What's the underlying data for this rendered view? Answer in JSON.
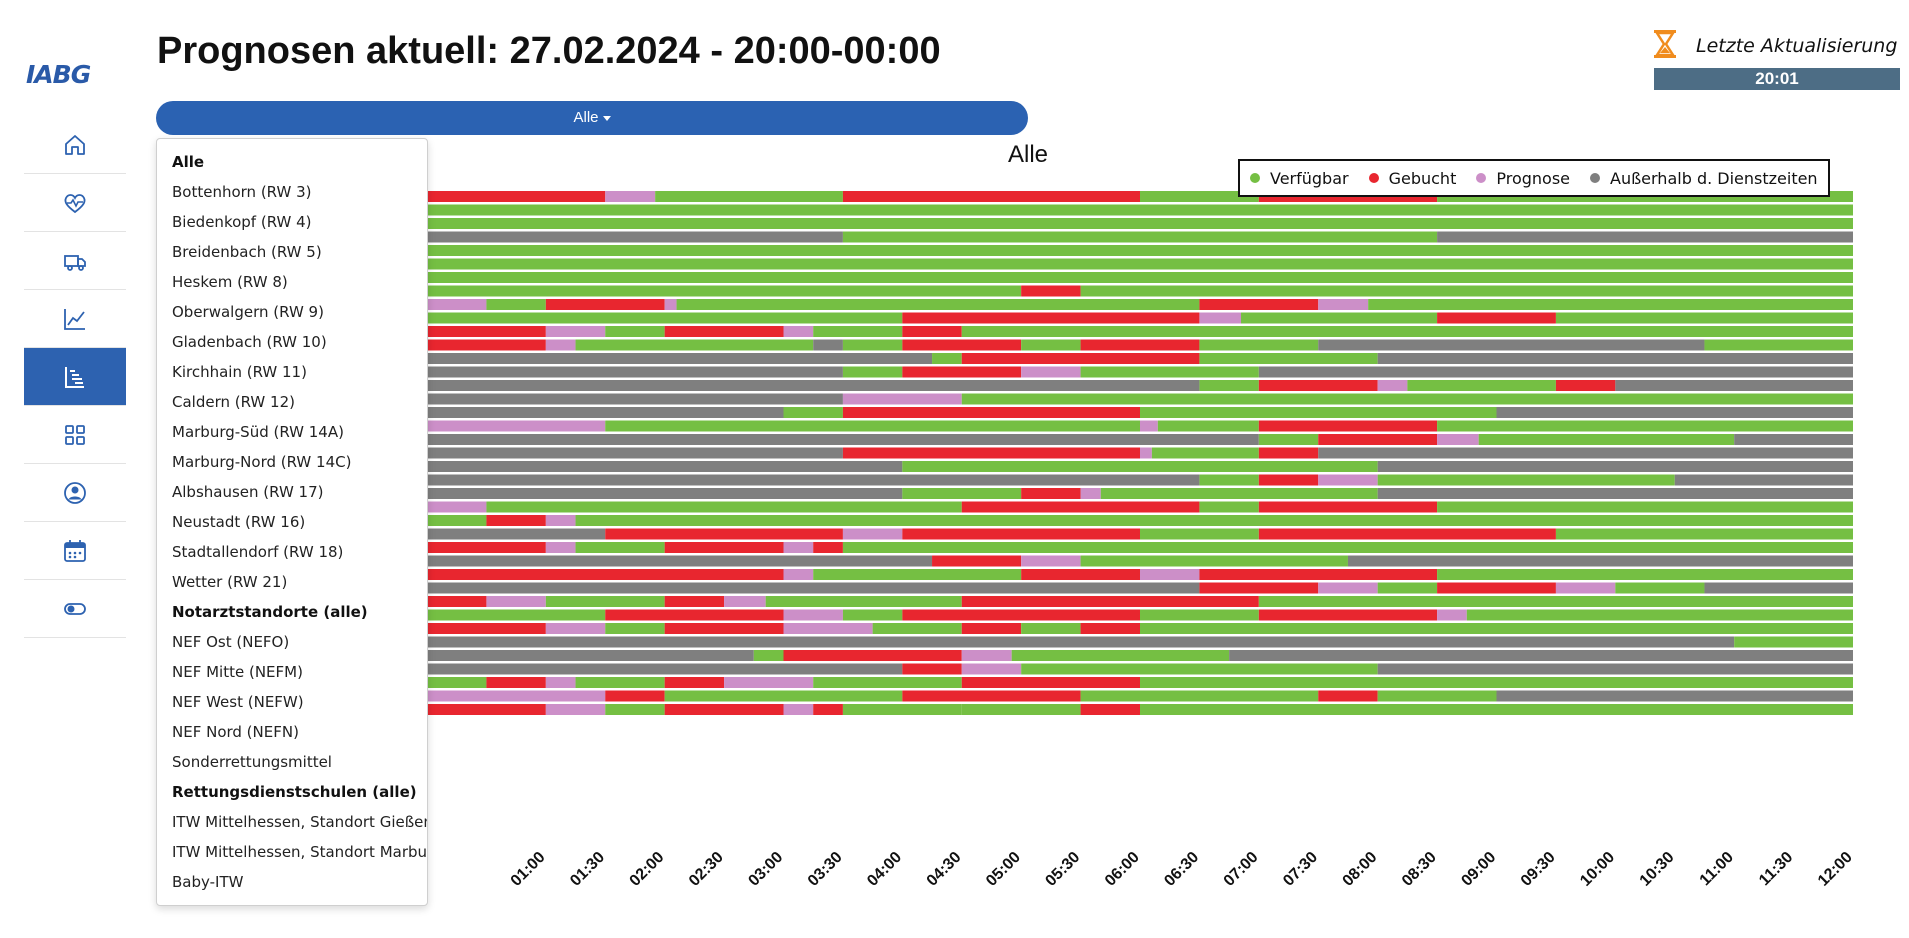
{
  "logo": {
    "text": "IABG"
  },
  "sidebar": {
    "items": [
      {
        "name": "home",
        "icon": "home-icon",
        "active": false
      },
      {
        "name": "health",
        "icon": "heart-pulse-icon",
        "active": false
      },
      {
        "name": "vehicles",
        "icon": "truck-icon",
        "active": false
      },
      {
        "name": "statistics",
        "icon": "line-chart-icon",
        "active": false
      },
      {
        "name": "forecast",
        "icon": "gantt-chart-icon",
        "active": true
      },
      {
        "name": "dashboard",
        "icon": "grid-icon",
        "active": false
      },
      {
        "name": "profile",
        "icon": "user-circle-icon",
        "active": false
      },
      {
        "name": "calendar",
        "icon": "calendar-icon",
        "active": false
      },
      {
        "name": "settings",
        "icon": "toggle-icon",
        "active": false
      }
    ]
  },
  "header": {
    "title": "Prognosen aktuell: 27.02.2024 - 20:00-00:00",
    "update_label": "Letzte Aktualisierung",
    "update_time": "20:01"
  },
  "filter": {
    "selected": "Alle",
    "options": [
      {
        "label": "Alle",
        "bold": true
      },
      {
        "label": "Bottenhorn (RW 3)",
        "bold": false
      },
      {
        "label": "Biedenkopf (RW 4)",
        "bold": false
      },
      {
        "label": "Breidenbach (RW 5)",
        "bold": false
      },
      {
        "label": "Heskem (RW 8)",
        "bold": false
      },
      {
        "label": "Oberwalgern (RW 9)",
        "bold": false
      },
      {
        "label": "Gladenbach (RW 10)",
        "bold": false
      },
      {
        "label": "Kirchhain (RW 11)",
        "bold": false
      },
      {
        "label": "Caldern (RW 12)",
        "bold": false
      },
      {
        "label": "Marburg-Süd (RW 14A)",
        "bold": false
      },
      {
        "label": "Marburg-Nord (RW 14C)",
        "bold": false
      },
      {
        "label": "Albshausen (RW 17)",
        "bold": false
      },
      {
        "label": "Neustadt (RW 16)",
        "bold": false
      },
      {
        "label": "Stadtallendorf (RW 18)",
        "bold": false
      },
      {
        "label": "Wetter (RW 21)",
        "bold": false
      },
      {
        "label": "Notarztstandorte (alle)",
        "bold": true
      },
      {
        "label": "NEF Ost (NEFO)",
        "bold": false
      },
      {
        "label": "NEF Mitte (NEFM)",
        "bold": false
      },
      {
        "label": "NEF West (NEFW)",
        "bold": false
      },
      {
        "label": "NEF Nord (NEFN)",
        "bold": false
      },
      {
        "label": "Sonderrettungsmittel",
        "bold": false
      },
      {
        "label": "Rettungsdienstschulen (alle)",
        "bold": true
      },
      {
        "label": "ITW Mittelhessen, Standort Gießen",
        "bold": false
      },
      {
        "label": "ITW Mittelhessen, Standort Marburg",
        "bold": false
      },
      {
        "label": "Baby-ITW",
        "bold": false
      }
    ]
  },
  "colors": {
    "verfuegbar": "#75bf43",
    "gebucht": "#e8262f",
    "prognose": "#cc8fc8",
    "ausserhalb": "#7f7f7f",
    "accent": "#2b62b2"
  },
  "chart_data": {
    "type": "timeline",
    "title": "Alle",
    "legend": [
      {
        "key": "V",
        "label": "Verfügbar"
      },
      {
        "key": "G",
        "label": "Gebucht"
      },
      {
        "key": "P",
        "label": "Prognose"
      },
      {
        "key": "A",
        "label": "Außerhalb d. Dienstzeiten"
      }
    ],
    "legend_position": "top-right",
    "x_unit": "hours since 00:00",
    "xlim": [
      0,
      12
    ],
    "x_ticks": [
      "01:00",
      "01:30",
      "02:00",
      "02:30",
      "03:00",
      "03:30",
      "04:00",
      "04:30",
      "05:00",
      "05:30",
      "06:00",
      "06:30",
      "07:00",
      "07:30",
      "08:00",
      "08:30",
      "09:00",
      "09:30",
      "10:00",
      "10:30",
      "11:00",
      "11:30",
      "12:00"
    ],
    "rows": [
      [
        [
          0,
          1.5,
          "G"
        ],
        [
          1.5,
          1.92,
          "P"
        ],
        [
          1.92,
          3.5,
          "V"
        ],
        [
          3.5,
          6.0,
          "G"
        ],
        [
          6.0,
          7.0,
          "V"
        ],
        [
          7.0,
          8.5,
          "G"
        ],
        [
          8.5,
          12,
          "V"
        ]
      ],
      [
        [
          0,
          12,
          "V"
        ]
      ],
      [
        [
          0,
          12,
          "V"
        ]
      ],
      [
        [
          0,
          3.5,
          "A"
        ],
        [
          3.5,
          8.5,
          "V"
        ],
        [
          8.5,
          12,
          "A"
        ]
      ],
      [
        [
          0,
          12,
          "V"
        ]
      ],
      [
        [
          0,
          12,
          "V"
        ]
      ],
      [
        [
          0,
          12,
          "V"
        ]
      ],
      [
        [
          0,
          5.0,
          "V"
        ],
        [
          5.0,
          5.5,
          "G"
        ],
        [
          5.5,
          12,
          "V"
        ]
      ],
      [
        [
          0,
          0.5,
          "P"
        ],
        [
          0.5,
          1.0,
          "V"
        ],
        [
          1.0,
          2.0,
          "G"
        ],
        [
          2.0,
          2.1,
          "P"
        ],
        [
          2.1,
          6.5,
          "V"
        ],
        [
          6.5,
          7.5,
          "G"
        ],
        [
          7.5,
          7.92,
          "P"
        ],
        [
          7.92,
          12,
          "V"
        ]
      ],
      [
        [
          0,
          4.0,
          "V"
        ],
        [
          4.0,
          6.5,
          "G"
        ],
        [
          6.5,
          6.85,
          "P"
        ],
        [
          6.85,
          8.5,
          "V"
        ],
        [
          8.5,
          9.5,
          "G"
        ],
        [
          9.5,
          12,
          "V"
        ]
      ],
      [
        [
          0,
          1.0,
          "G"
        ],
        [
          1.0,
          1.5,
          "P"
        ],
        [
          1.5,
          2.0,
          "V"
        ],
        [
          2.0,
          3.0,
          "G"
        ],
        [
          3.0,
          3.25,
          "P"
        ],
        [
          3.25,
          4.0,
          "V"
        ],
        [
          4.0,
          4.5,
          "G"
        ],
        [
          4.5,
          12,
          "V"
        ]
      ],
      [
        [
          0,
          1.0,
          "G"
        ],
        [
          1.0,
          1.25,
          "P"
        ],
        [
          1.25,
          3.25,
          "V"
        ],
        [
          3.25,
          3.5,
          "A"
        ],
        [
          3.5,
          4.0,
          "V"
        ],
        [
          4.0,
          5.0,
          "G"
        ],
        [
          5.0,
          5.5,
          "V"
        ],
        [
          5.5,
          6.5,
          "G"
        ],
        [
          6.5,
          7.5,
          "V"
        ],
        [
          7.5,
          10.75,
          "A"
        ],
        [
          10.75,
          12,
          "V"
        ]
      ],
      [
        [
          0,
          4.25,
          "A"
        ],
        [
          4.25,
          4.5,
          "V"
        ],
        [
          4.5,
          6.5,
          "G"
        ],
        [
          6.5,
          8.0,
          "V"
        ],
        [
          8.0,
          12,
          "A"
        ]
      ],
      [
        [
          0,
          3.5,
          "A"
        ],
        [
          3.5,
          4.0,
          "V"
        ],
        [
          4.0,
          5.0,
          "G"
        ],
        [
          5.0,
          5.5,
          "P"
        ],
        [
          5.5,
          7.0,
          "V"
        ],
        [
          7.0,
          12,
          "A"
        ]
      ],
      [
        [
          0,
          6.5,
          "A"
        ],
        [
          6.5,
          7.0,
          "V"
        ],
        [
          7.0,
          8.0,
          "G"
        ],
        [
          8.0,
          8.25,
          "P"
        ],
        [
          8.25,
          9.5,
          "V"
        ],
        [
          9.5,
          10.0,
          "G"
        ],
        [
          10.0,
          12,
          "A"
        ]
      ],
      [
        [
          0,
          3.5,
          "A"
        ],
        [
          3.5,
          4.5,
          "P"
        ],
        [
          4.5,
          12,
          "V"
        ]
      ],
      [
        [
          0,
          3.0,
          "A"
        ],
        [
          3.0,
          3.5,
          "V"
        ],
        [
          3.5,
          6.0,
          "G"
        ],
        [
          6.0,
          9.0,
          "V"
        ],
        [
          9.0,
          12,
          "A"
        ]
      ],
      [
        [
          0,
          1.5,
          "P"
        ],
        [
          1.5,
          6.0,
          "V"
        ],
        [
          6.0,
          6.15,
          "P"
        ],
        [
          6.15,
          7.0,
          "V"
        ],
        [
          7.0,
          8.5,
          "G"
        ],
        [
          8.5,
          12,
          "V"
        ]
      ],
      [
        [
          0,
          7.0,
          "A"
        ],
        [
          7.0,
          7.5,
          "V"
        ],
        [
          7.5,
          8.5,
          "G"
        ],
        [
          8.5,
          8.85,
          "P"
        ],
        [
          8.85,
          11.0,
          "V"
        ],
        [
          11.0,
          12,
          "A"
        ]
      ],
      [
        [
          0,
          3.5,
          "A"
        ],
        [
          3.5,
          6.0,
          "G"
        ],
        [
          6.0,
          6.1,
          "P"
        ],
        [
          6.1,
          7.0,
          "V"
        ],
        [
          7.0,
          7.5,
          "G"
        ],
        [
          7.5,
          12,
          "A"
        ]
      ],
      [
        [
          0,
          4.0,
          "A"
        ],
        [
          4.0,
          8.0,
          "V"
        ],
        [
          8.0,
          12,
          "A"
        ]
      ],
      [
        [
          0,
          6.5,
          "A"
        ],
        [
          6.5,
          7.0,
          "V"
        ],
        [
          7.0,
          7.5,
          "G"
        ],
        [
          7.5,
          8.0,
          "P"
        ],
        [
          8.0,
          10.5,
          "V"
        ],
        [
          10.5,
          12,
          "A"
        ]
      ],
      [
        [
          0,
          4.0,
          "A"
        ],
        [
          4.0,
          5.0,
          "V"
        ],
        [
          5.0,
          5.5,
          "G"
        ],
        [
          5.5,
          5.67,
          "P"
        ],
        [
          5.67,
          8.0,
          "V"
        ],
        [
          8.0,
          12,
          "A"
        ]
      ],
      [
        [
          0,
          0.5,
          "P"
        ],
        [
          0.5,
          4.5,
          "V"
        ],
        [
          4.5,
          6.5,
          "G"
        ],
        [
          6.5,
          7.0,
          "V"
        ],
        [
          7.0,
          8.5,
          "G"
        ],
        [
          8.5,
          12,
          "V"
        ]
      ],
      [
        [
          0,
          0.5,
          "V"
        ],
        [
          0.5,
          1.0,
          "G"
        ],
        [
          1.0,
          1.25,
          "P"
        ],
        [
          1.25,
          12,
          "V"
        ]
      ],
      [
        [
          0,
          1.5,
          "A"
        ],
        [
          1.5,
          3.5,
          "G"
        ],
        [
          3.5,
          4.0,
          "P"
        ],
        [
          4.0,
          6.0,
          "G"
        ],
        [
          6.0,
          7.0,
          "V"
        ],
        [
          7.0,
          9.5,
          "G"
        ],
        [
          9.5,
          12,
          "V"
        ]
      ],
      [
        [
          0,
          1.0,
          "G"
        ],
        [
          1.0,
          1.25,
          "P"
        ],
        [
          1.25,
          2.0,
          "V"
        ],
        [
          2.0,
          3.0,
          "G"
        ],
        [
          3.0,
          3.25,
          "P"
        ],
        [
          3.25,
          3.5,
          "G"
        ],
        [
          3.5,
          12,
          "V"
        ]
      ],
      [
        [
          0,
          4.25,
          "A"
        ],
        [
          4.25,
          5.0,
          "G"
        ],
        [
          5.0,
          5.5,
          "P"
        ],
        [
          5.5,
          7.75,
          "V"
        ],
        [
          7.75,
          12,
          "A"
        ]
      ],
      [
        [
          0,
          3.0,
          "G"
        ],
        [
          3.0,
          3.25,
          "P"
        ],
        [
          3.25,
          5.0,
          "V"
        ],
        [
          5.0,
          6.0,
          "G"
        ],
        [
          6.0,
          6.5,
          "P"
        ],
        [
          6.5,
          8.5,
          "G"
        ],
        [
          8.5,
          12,
          "V"
        ]
      ],
      [
        [
          0,
          6.5,
          "A"
        ],
        [
          6.5,
          7.5,
          "G"
        ],
        [
          7.5,
          8.0,
          "P"
        ],
        [
          8.0,
          8.5,
          "V"
        ],
        [
          8.5,
          9.5,
          "G"
        ],
        [
          9.5,
          10.0,
          "P"
        ],
        [
          10.0,
          10.75,
          "V"
        ],
        [
          10.75,
          12,
          "A"
        ]
      ],
      [
        [
          0,
          0.5,
          "G"
        ],
        [
          0.5,
          1.0,
          "P"
        ],
        [
          1.0,
          2.0,
          "V"
        ],
        [
          2.0,
          2.5,
          "G"
        ],
        [
          2.5,
          2.85,
          "P"
        ],
        [
          2.85,
          4.5,
          "V"
        ],
        [
          4.5,
          7.0,
          "G"
        ],
        [
          7.0,
          12,
          "V"
        ]
      ],
      [
        [
          0,
          1.5,
          "V"
        ],
        [
          1.5,
          3.0,
          "G"
        ],
        [
          3.0,
          3.5,
          "P"
        ],
        [
          3.5,
          4.0,
          "V"
        ],
        [
          4.0,
          6.0,
          "G"
        ],
        [
          6.0,
          7.0,
          "V"
        ],
        [
          7.0,
          8.5,
          "G"
        ],
        [
          8.5,
          8.75,
          "P"
        ],
        [
          8.75,
          12,
          "V"
        ]
      ],
      [
        [
          0,
          1.0,
          "G"
        ],
        [
          1.0,
          1.5,
          "P"
        ],
        [
          1.5,
          2.0,
          "V"
        ],
        [
          2.0,
          3.0,
          "G"
        ],
        [
          3.0,
          3.75,
          "P"
        ],
        [
          3.75,
          4.5,
          "V"
        ],
        [
          4.5,
          5.0,
          "G"
        ],
        [
          5.0,
          5.5,
          "V"
        ],
        [
          5.5,
          6.0,
          "G"
        ],
        [
          6.0,
          12,
          "V"
        ]
      ],
      [
        [
          0,
          11.0,
          "A"
        ],
        [
          11.0,
          12,
          "V"
        ]
      ],
      [
        [
          0,
          2.75,
          "A"
        ],
        [
          2.75,
          3.0,
          "V"
        ],
        [
          3.0,
          4.5,
          "G"
        ],
        [
          4.5,
          4.92,
          "P"
        ],
        [
          4.92,
          6.75,
          "V"
        ],
        [
          6.75,
          12,
          "A"
        ]
      ],
      [
        [
          0,
          4.0,
          "A"
        ],
        [
          4.0,
          4.5,
          "G"
        ],
        [
          4.5,
          5.0,
          "P"
        ],
        [
          5.0,
          8.0,
          "V"
        ],
        [
          8.0,
          12,
          "A"
        ]
      ],
      [
        [
          0,
          0.5,
          "V"
        ],
        [
          0.5,
          1.0,
          "G"
        ],
        [
          1.0,
          1.25,
          "P"
        ],
        [
          1.25,
          2.0,
          "V"
        ],
        [
          2.0,
          2.5,
          "G"
        ],
        [
          2.5,
          3.25,
          "P"
        ],
        [
          3.25,
          4.5,
          "V"
        ],
        [
          4.5,
          6.0,
          "G"
        ],
        [
          6.0,
          12,
          "V"
        ]
      ],
      [
        [
          0,
          1.5,
          "P"
        ],
        [
          1.5,
          2.0,
          "G"
        ],
        [
          2.0,
          4.0,
          "V"
        ],
        [
          4.0,
          5.5,
          "G"
        ],
        [
          5.5,
          7.5,
          "V"
        ],
        [
          7.5,
          8.0,
          "G"
        ],
        [
          8.0,
          9.0,
          "V"
        ],
        [
          9.0,
          12,
          "A"
        ]
      ],
      [
        [
          0,
          1.0,
          "G"
        ],
        [
          1.0,
          1.5,
          "P"
        ],
        [
          1.5,
          2.0,
          "V"
        ],
        [
          2.0,
          3.0,
          "G"
        ],
        [
          3.0,
          3.25,
          "P"
        ],
        [
          3.25,
          3.5,
          "G"
        ],
        [
          3.5,
          4.5,
          "V"
        ],
        [
          4.5,
          5.5,
          "V"
        ],
        [
          5.5,
          6.0,
          "G"
        ],
        [
          6.0,
          12,
          "V"
        ]
      ]
    ]
  }
}
